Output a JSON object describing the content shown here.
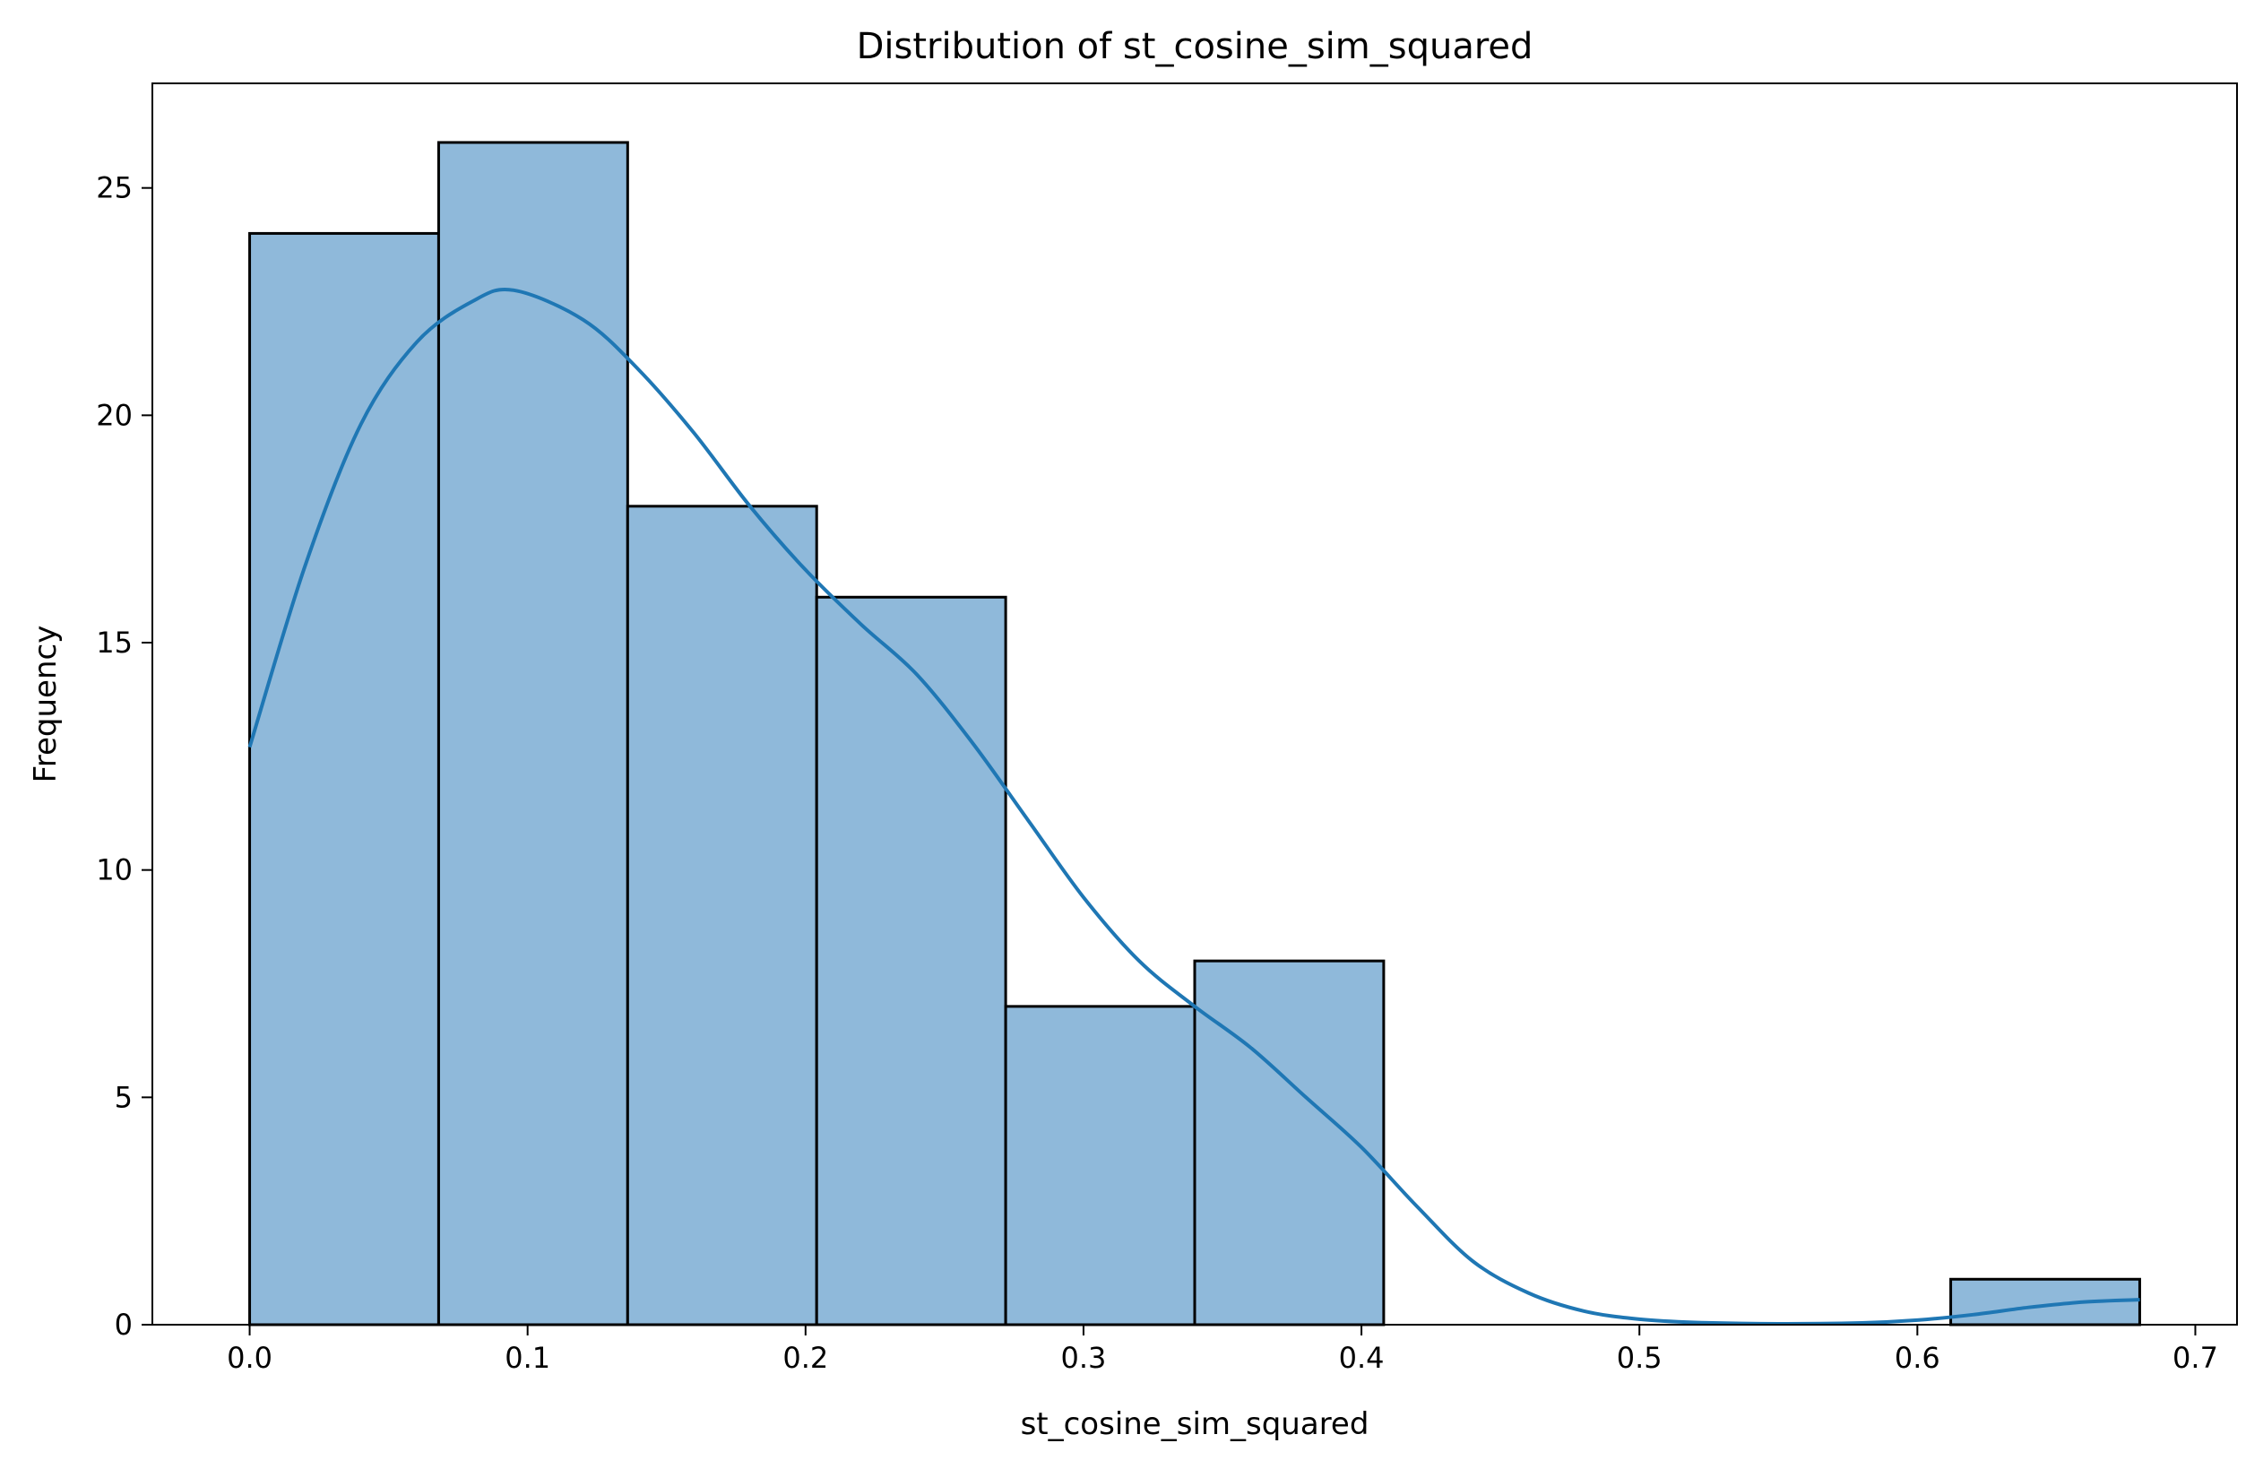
{
  "chart_data": {
    "type": "bar",
    "subtype": "histogram-with-kde",
    "title": "Distribution of st_cosine_sim_squared",
    "xlabel": "st_cosine_sim_squared",
    "ylabel": "Frequency",
    "xlim": [
      -0.035,
      0.715
    ],
    "ylim": [
      0,
      27.3
    ],
    "xticks": [
      0.0,
      0.1,
      0.2,
      0.3,
      0.4,
      0.5,
      0.6,
      0.7
    ],
    "xtick_labels": [
      "0.0",
      "0.1",
      "0.2",
      "0.3",
      "0.4",
      "0.5",
      "0.6",
      "0.7"
    ],
    "yticks": [
      0,
      5,
      10,
      15,
      20,
      25
    ],
    "ytick_labels": [
      "0",
      "5",
      "10",
      "15",
      "20",
      "25"
    ],
    "grid": false,
    "bins": [
      {
        "start": 0.0,
        "end": 0.068,
        "count": 24
      },
      {
        "start": 0.068,
        "end": 0.136,
        "count": 26
      },
      {
        "start": 0.136,
        "end": 0.204,
        "count": 18
      },
      {
        "start": 0.204,
        "end": 0.272,
        "count": 16
      },
      {
        "start": 0.272,
        "end": 0.34,
        "count": 7
      },
      {
        "start": 0.34,
        "end": 0.408,
        "count": 8
      },
      {
        "start": 0.408,
        "end": 0.476,
        "count": 0
      },
      {
        "start": 0.476,
        "end": 0.544,
        "count": 0
      },
      {
        "start": 0.544,
        "end": 0.612,
        "count": 0
      },
      {
        "start": 0.612,
        "end": 0.68,
        "count": 1
      }
    ],
    "kde": {
      "x": [
        0.0,
        0.02,
        0.04,
        0.06,
        0.08,
        0.095,
        0.12,
        0.14,
        0.16,
        0.18,
        0.2,
        0.22,
        0.24,
        0.26,
        0.28,
        0.3,
        0.32,
        0.34,
        0.36,
        0.38,
        0.4,
        0.42,
        0.44,
        0.46,
        0.48,
        0.5,
        0.52,
        0.55,
        0.58,
        0.6,
        0.62,
        0.64,
        0.66,
        0.68
      ],
      "y": [
        12.7,
        16.7,
        19.8,
        21.6,
        22.5,
        22.75,
        22.1,
        21.0,
        19.6,
        18.0,
        16.6,
        15.4,
        14.3,
        12.8,
        11.1,
        9.4,
        8.0,
        7.0,
        6.1,
        5.0,
        3.9,
        2.6,
        1.4,
        0.7,
        0.3,
        0.12,
        0.05,
        0.02,
        0.04,
        0.1,
        0.22,
        0.38,
        0.5,
        0.55
      ]
    },
    "colors": {
      "bar_fill": "#8fb9da",
      "bar_edge": "#000000",
      "kde_line": "#1f77b4"
    }
  }
}
